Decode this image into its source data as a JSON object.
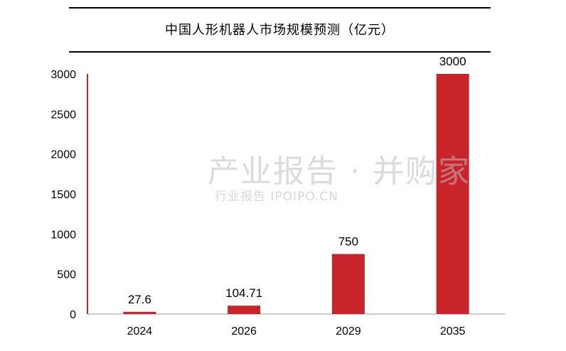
{
  "chart_data": {
    "type": "bar",
    "title": "中国人形机器人市场规模预测（亿元）",
    "categories": [
      "2024",
      "2026",
      "2029",
      "2035"
    ],
    "values": [
      27.6,
      104.71,
      750,
      3000
    ],
    "data_labels": [
      "27.6",
      "104.71",
      "750",
      "3000"
    ],
    "yticks": [
      "0",
      "500",
      "1000",
      "1500",
      "2000",
      "2500",
      "3000"
    ],
    "ylim": [
      0,
      3000
    ],
    "grid": false,
    "legend": "none",
    "bar_color": "#c8242b",
    "axis_color": "#c8242b"
  },
  "watermark": {
    "main": "产业报告 · 并购家",
    "sub": "行业报告 IPOIPO.CN"
  }
}
